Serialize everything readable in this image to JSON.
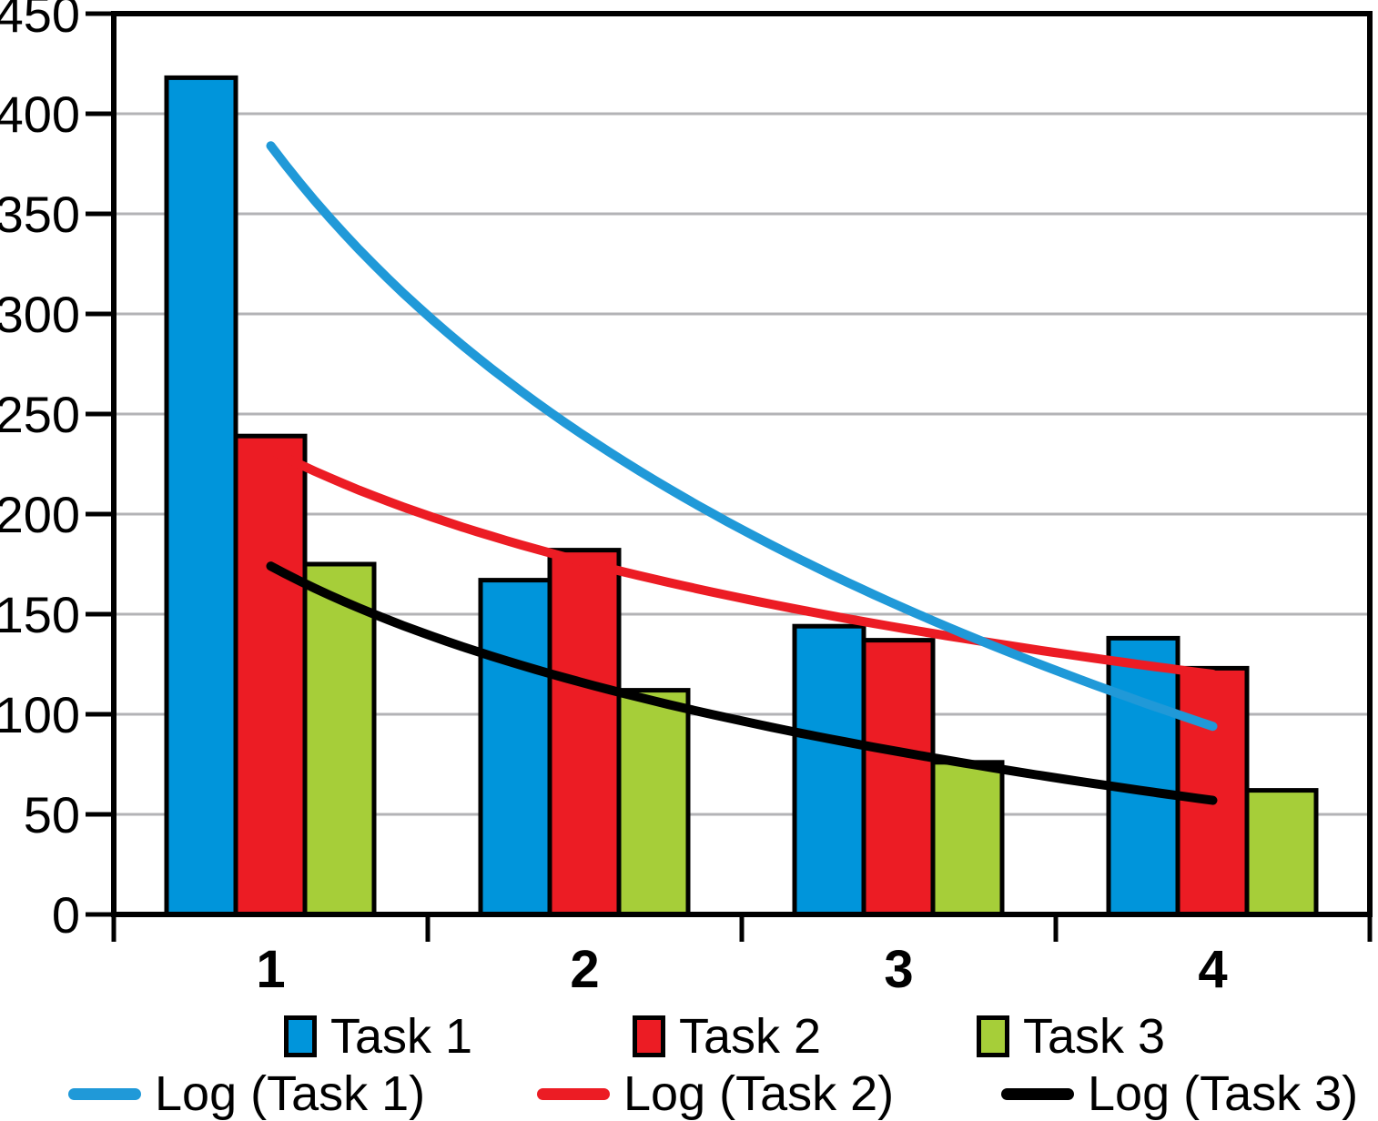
{
  "chart_data": {
    "type": "bar",
    "title": "",
    "xlabel": "",
    "ylabel": "",
    "categories": [
      "1",
      "2",
      "3",
      "4"
    ],
    "series": [
      {
        "name": "Task 1",
        "color": "#0095DB",
        "values": [
          418,
          167,
          144,
          138
        ]
      },
      {
        "name": "Task 2",
        "color": "#EC1C24",
        "values": [
          239,
          182,
          137,
          123
        ]
      },
      {
        "name": "Task 3",
        "color": "#A6CE39",
        "values": [
          175,
          112,
          76,
          62
        ]
      }
    ],
    "trendlines": [
      {
        "name": "Log (Task 1)",
        "type": "logarithmic",
        "color": "#2099D8",
        "values_at_categories": [
          384,
          239,
          154,
          94
        ]
      },
      {
        "name": "Log (Task 2)",
        "type": "logarithmic",
        "color": "#EC1C24",
        "values_at_categories": [
          232,
          176,
          143,
          120
        ]
      },
      {
        "name": "Log (Task 3)",
        "type": "logarithmic",
        "color": "#000000",
        "values_at_categories": [
          174,
          115,
          81,
          57
        ]
      }
    ],
    "ylim": [
      0,
      450
    ],
    "ytick_step": 50,
    "yticks": [
      0,
      50,
      100,
      150,
      200,
      250,
      300,
      350,
      400,
      450
    ],
    "grid": true,
    "grid_color": "#b3b3b6",
    "axis_color": "#000000",
    "legend_position": "bottom"
  }
}
